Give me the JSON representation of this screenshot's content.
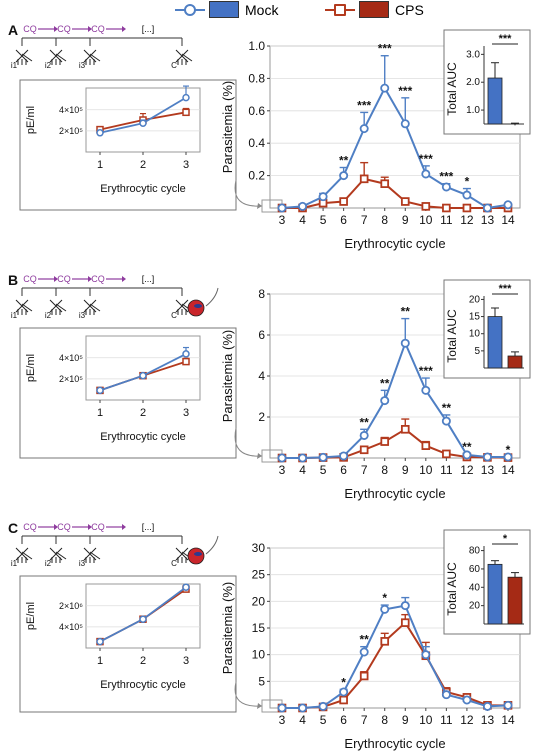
{
  "legend": {
    "mock": {
      "label": "Mock",
      "line_color": "#4f7fc4",
      "fill_color": "#4472c4"
    },
    "cps": {
      "label": "CPS",
      "line_color": "#b33a1e",
      "fill_color": "#a52a15"
    }
  },
  "common": {
    "main_xlabel": "Erythrocytic cycle",
    "main_ylabel": "Parasitemia (%)",
    "inset_xlabel": "Erythrocytic cycle",
    "inset_ylabel": "pE/ml",
    "auc_ylabel": "Total AUC",
    "schedule_labels": [
      "CQ",
      "CQ",
      "CQ",
      "[...]",
      "i1",
      "i2",
      "i3",
      "C"
    ]
  },
  "chart_data": [
    {
      "panel": "A",
      "type": "line",
      "x": [
        3,
        4,
        5,
        6,
        7,
        8,
        9,
        10,
        11,
        12,
        13,
        14
      ],
      "ylim": [
        0,
        1.0
      ],
      "yticks": [
        0.2,
        0.4,
        0.6,
        0.8,
        1.0
      ],
      "ytick_labels": [
        "0.2",
        "0.4",
        "0.6",
        "0.8",
        "1.0"
      ],
      "series": [
        {
          "name": "Mock",
          "values": [
            0,
            0.01,
            0.07,
            0.2,
            0.49,
            0.74,
            0.52,
            0.21,
            0.13,
            0.08,
            0,
            0.02
          ],
          "errors": [
            0,
            0,
            0.02,
            0.05,
            0.1,
            0.2,
            0.16,
            0.05,
            0.02,
            0.04,
            0,
            0
          ]
        },
        {
          "name": "CPS",
          "values": [
            0,
            0,
            0.03,
            0.04,
            0.18,
            0.15,
            0.04,
            0.01,
            0,
            0,
            0,
            0
          ],
          "errors": [
            0,
            0,
            0,
            0.01,
            0.1,
            0.04,
            0.02,
            0,
            0,
            0,
            0,
            0
          ]
        }
      ],
      "annotations": [
        {
          "x": 6,
          "text": "**"
        },
        {
          "x": 7,
          "text": "***"
        },
        {
          "x": 8,
          "text": "***"
        },
        {
          "x": 9,
          "text": "***"
        },
        {
          "x": 10,
          "text": "***"
        },
        {
          "x": 11,
          "text": "***"
        },
        {
          "x": 12,
          "text": "*"
        }
      ],
      "inset": {
        "x": [
          1,
          2,
          3
        ],
        "xticks": [
          "1",
          "2",
          "3"
        ],
        "yticks": [
          "2×10⁵",
          "4×10⁵"
        ],
        "mock": [
          0.3,
          0.45,
          0.85
        ],
        "cps": [
          0.35,
          0.5,
          0.62
        ],
        "mock_err": [
          0.04,
          0.05,
          0.18
        ],
        "cps_err": [
          0.04,
          0.1,
          0.06
        ]
      },
      "auc": {
        "yticks": [
          "1.0",
          "2.0",
          "3.0"
        ],
        "ylim": [
          0.5,
          3.3
        ],
        "mock": 2.15,
        "cps": 0.45,
        "mock_err": 0.55,
        "cps_err": 0.08,
        "sig": "***"
      }
    },
    {
      "panel": "B",
      "type": "line",
      "x": [
        3,
        4,
        5,
        6,
        7,
        8,
        9,
        10,
        11,
        12,
        13,
        14
      ],
      "ylim": [
        0,
        8
      ],
      "yticks": [
        2,
        4,
        6,
        8
      ],
      "ytick_labels": [
        "2",
        "4",
        "6",
        "8"
      ],
      "series": [
        {
          "name": "Mock",
          "values": [
            0,
            0,
            0.03,
            0.1,
            1.1,
            2.8,
            5.6,
            3.3,
            1.8,
            0.15,
            0.05,
            0.05
          ],
          "errors": [
            0,
            0,
            0,
            0.05,
            0.3,
            0.5,
            1.2,
            0.6,
            0.3,
            0.05,
            0,
            0
          ]
        },
        {
          "name": "CPS",
          "values": [
            0,
            0,
            0.02,
            0.03,
            0.4,
            0.8,
            1.4,
            0.6,
            0.2,
            0.05,
            0.03,
            0.02
          ],
          "errors": [
            0,
            0,
            0,
            0.01,
            0.1,
            0.2,
            0.5,
            0.2,
            0.05,
            0,
            0,
            0
          ]
        }
      ],
      "annotations": [
        {
          "x": 7,
          "text": "**"
        },
        {
          "x": 8,
          "text": "**"
        },
        {
          "x": 9,
          "text": "**"
        },
        {
          "x": 10,
          "text": "***"
        },
        {
          "x": 11,
          "text": "**"
        },
        {
          "x": 12,
          "text": "**"
        },
        {
          "x": 14,
          "text": "*"
        }
      ],
      "inset": {
        "x": [
          1,
          2,
          3
        ],
        "xticks": [
          "1",
          "2",
          "3"
        ],
        "yticks": [
          "2×10⁵",
          "4×10⁵"
        ],
        "mock": [
          0.15,
          0.38,
          0.72
        ],
        "cps": [
          0.15,
          0.38,
          0.6
        ],
        "mock_err": [
          0.02,
          0.03,
          0.1
        ],
        "cps_err": [
          0.02,
          0.03,
          0.05
        ]
      },
      "auc": {
        "yticks": [
          "5",
          "10",
          "15",
          "20"
        ],
        "ylim": [
          0,
          21
        ],
        "mock": 15,
        "cps": 3.5,
        "mock_err": 2.5,
        "cps_err": 1.2,
        "sig": "***"
      }
    },
    {
      "panel": "C",
      "type": "line",
      "x": [
        3,
        4,
        5,
        6,
        7,
        8,
        9,
        10,
        11,
        12,
        13,
        14
      ],
      "ylim": [
        0,
        30
      ],
      "yticks": [
        5,
        10,
        15,
        20,
        25,
        30
      ],
      "ytick_labels": [
        "5",
        "10",
        "15",
        "20",
        "25",
        "30"
      ],
      "series": [
        {
          "name": "Mock",
          "values": [
            0,
            0,
            0.3,
            3,
            10.5,
            18.5,
            19.2,
            10,
            2.5,
            1.5,
            0.3,
            0.5
          ],
          "errors": [
            0,
            0,
            0.1,
            0.5,
            1,
            0.8,
            1.5,
            1.5,
            0.6,
            0.5,
            0.1,
            0.2
          ]
        },
        {
          "name": "CPS",
          "values": [
            0,
            0,
            0.2,
            1.5,
            6,
            12.5,
            16,
            9.8,
            3,
            2,
            0.5,
            0.5
          ],
          "errors": [
            0,
            0,
            0.05,
            0.3,
            0.8,
            1.5,
            1.5,
            2.5,
            0.8,
            0.5,
            0.1,
            0.2
          ]
        }
      ],
      "annotations": [
        {
          "x": 6,
          "text": "*"
        },
        {
          "x": 7,
          "text": "**"
        },
        {
          "x": 8,
          "text": "*"
        }
      ],
      "inset": {
        "x": [
          1,
          2,
          3
        ],
        "xticks": [
          "1",
          "2",
          "3"
        ],
        "yticks": [
          "4×10⁵",
          "2×10⁶"
        ],
        "mock": [
          0.1,
          0.45,
          0.95
        ],
        "cps": [
          0.1,
          0.45,
          0.92
        ],
        "mock_err": [
          0.01,
          0.02,
          0.03
        ],
        "cps_err": [
          0.01,
          0.02,
          0.03
        ]
      },
      "auc": {
        "yticks": [
          "20",
          "40",
          "60",
          "80"
        ],
        "ylim": [
          0,
          85
        ],
        "mock": 65,
        "cps": 51,
        "mock_err": 4,
        "cps_err": 5,
        "sig": "*"
      }
    }
  ]
}
